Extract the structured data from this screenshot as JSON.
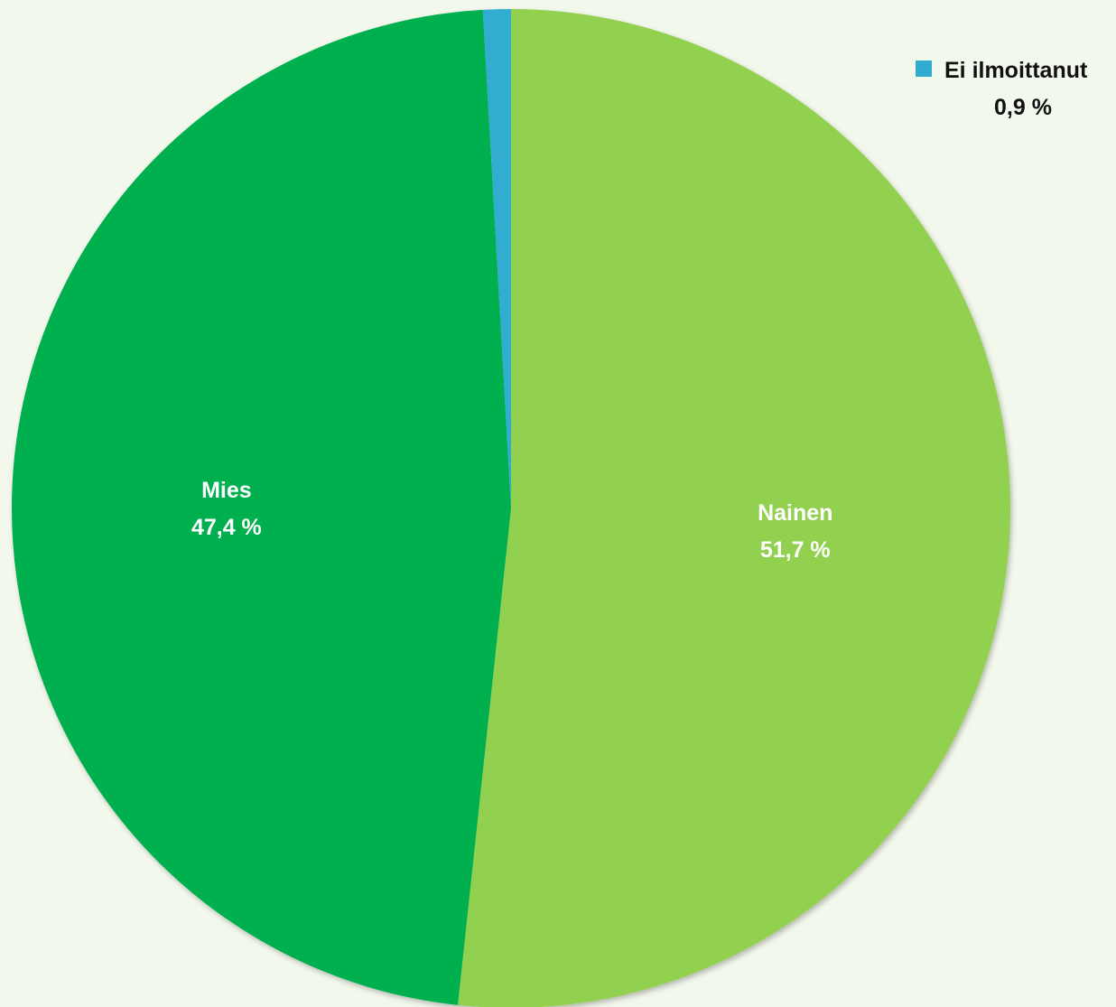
{
  "chart_data": {
    "type": "pie",
    "slices": [
      {
        "name": "Nainen",
        "value": 51.7,
        "value_label": "51,7 %",
        "color": "#92d050"
      },
      {
        "name": "Mies",
        "value": 47.4,
        "value_label": "47,4 %",
        "color": "#00b050"
      },
      {
        "name": "Ei ilmoittanut",
        "value": 0.9,
        "value_label": "0,9 %",
        "color": "#31acd0"
      }
    ],
    "start": "12 o'clock",
    "direction": "clockwise",
    "labels": "inside",
    "legend_position": "top-right"
  },
  "background_color": "#f3f8ec"
}
